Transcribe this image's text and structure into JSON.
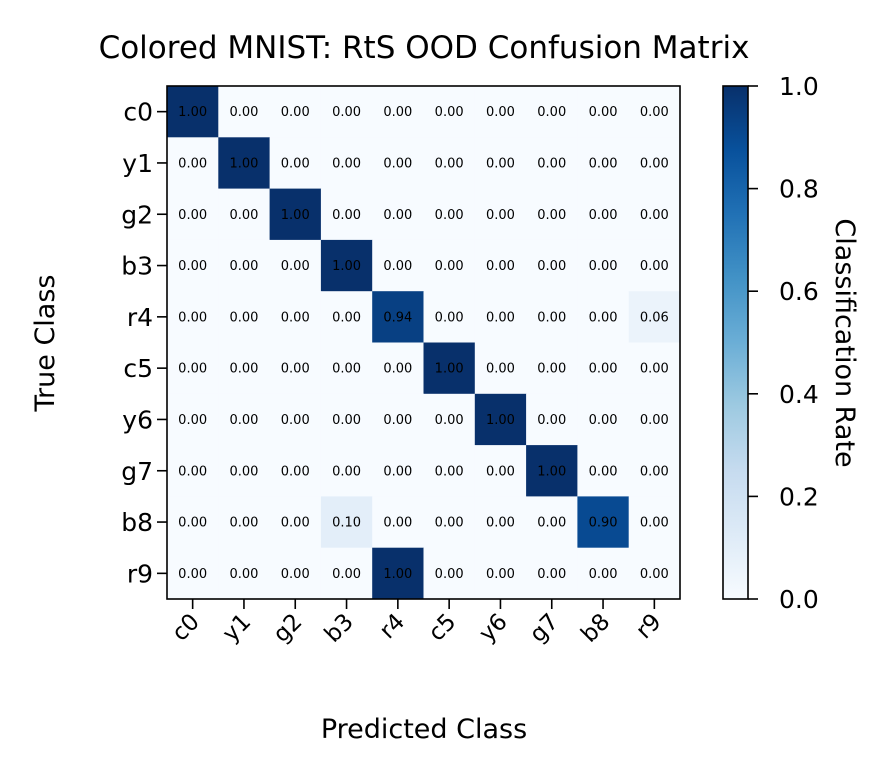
{
  "chart_data": {
    "type": "heatmap",
    "title": "Colored MNIST: RtS OOD Confusion Matrix",
    "xlabel": "Predicted Class",
    "ylabel": "True Class",
    "x_categories": [
      "c0",
      "y1",
      "g2",
      "b3",
      "r4",
      "c5",
      "y6",
      "g7",
      "b8",
      "r9"
    ],
    "y_categories": [
      "c0",
      "y1",
      "g2",
      "b3",
      "r4",
      "c5",
      "y6",
      "g7",
      "b8",
      "r9"
    ],
    "values": [
      [
        1.0,
        0.0,
        0.0,
        0.0,
        0.0,
        0.0,
        0.0,
        0.0,
        0.0,
        0.0
      ],
      [
        0.0,
        1.0,
        0.0,
        0.0,
        0.0,
        0.0,
        0.0,
        0.0,
        0.0,
        0.0
      ],
      [
        0.0,
        0.0,
        1.0,
        0.0,
        0.0,
        0.0,
        0.0,
        0.0,
        0.0,
        0.0
      ],
      [
        0.0,
        0.0,
        0.0,
        1.0,
        0.0,
        0.0,
        0.0,
        0.0,
        0.0,
        0.0
      ],
      [
        0.0,
        0.0,
        0.0,
        0.0,
        0.94,
        0.0,
        0.0,
        0.0,
        0.0,
        0.06
      ],
      [
        0.0,
        0.0,
        0.0,
        0.0,
        0.0,
        1.0,
        0.0,
        0.0,
        0.0,
        0.0
      ],
      [
        0.0,
        0.0,
        0.0,
        0.0,
        0.0,
        0.0,
        1.0,
        0.0,
        0.0,
        0.0
      ],
      [
        0.0,
        0.0,
        0.0,
        0.0,
        0.0,
        0.0,
        0.0,
        1.0,
        0.0,
        0.0
      ],
      [
        0.0,
        0.0,
        0.0,
        0.1,
        0.0,
        0.0,
        0.0,
        0.0,
        0.9,
        0.0
      ],
      [
        0.0,
        0.0,
        0.0,
        0.0,
        1.0,
        0.0,
        0.0,
        0.0,
        0.0,
        0.0
      ]
    ],
    "value_range": [
      0.0,
      1.0
    ],
    "colormap": "Blues",
    "colorbar": {
      "label": "Classification Rate",
      "ticks": [
        "0.0",
        "0.2",
        "0.4",
        "0.6",
        "0.8",
        "1.0"
      ]
    },
    "grid": false
  }
}
